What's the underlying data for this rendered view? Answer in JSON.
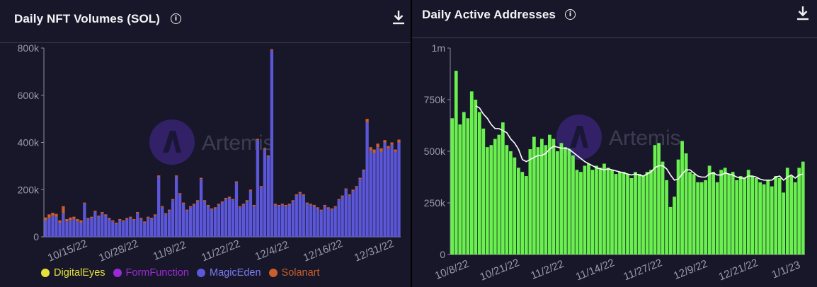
{
  "left": {
    "title": "Daily NFT Volumes (SOL)",
    "watermark": "Artemis",
    "legend": [
      {
        "label": "DigitalEyes",
        "color": "#e6e23a"
      },
      {
        "label": "FormFunction",
        "color": "#9b2ad6"
      },
      {
        "label": "MagicEden",
        "color": "#5b57d8"
      },
      {
        "label": "Solanart",
        "color": "#c95f2a"
      }
    ]
  },
  "right": {
    "title": "Daily Active Addresses",
    "watermark": "Artemis"
  },
  "chart_data": [
    {
      "type": "bar",
      "stacked": true,
      "title": "Daily NFT Volumes (SOL)",
      "x_tick_labels": [
        "10/15/22",
        "10/28/22",
        "11/9/22",
        "11/22/22",
        "12/4/22",
        "12/16/22",
        "12/31/22"
      ],
      "y_tick_labels": [
        "0",
        "200k",
        "400k",
        "600k",
        "800k"
      ],
      "ylim": [
        0,
        800000
      ],
      "grid": false,
      "legend_position": "bottom",
      "series": [
        {
          "name": "MagicEden",
          "color": "#5b57d8",
          "values": [
            70000,
            80000,
            90000,
            85000,
            60000,
            100000,
            65000,
            70000,
            75000,
            65000,
            60000,
            140000,
            75000,
            80000,
            105000,
            85000,
            100000,
            90000,
            75000,
            65000,
            55000,
            70000,
            65000,
            75000,
            80000,
            70000,
            100000,
            75000,
            60000,
            80000,
            75000,
            90000,
            255000,
            125000,
            95000,
            110000,
            155000,
            255000,
            180000,
            140000,
            110000,
            125000,
            135000,
            150000,
            245000,
            150000,
            130000,
            115000,
            120000,
            135000,
            145000,
            160000,
            165000,
            155000,
            230000,
            125000,
            135000,
            150000,
            195000,
            130000,
            410000,
            210000,
            370000,
            340000,
            790000,
            135000,
            130000,
            135000,
            130000,
            135000,
            150000,
            175000,
            185000,
            175000,
            140000,
            135000,
            130000,
            120000,
            110000,
            130000,
            120000,
            115000,
            125000,
            155000,
            170000,
            200000,
            175000,
            195000,
            210000,
            245000,
            280000,
            485000,
            365000,
            355000,
            380000,
            360000,
            400000,
            375000,
            390000,
            360000,
            400000
          ]
        },
        {
          "name": "Solanart",
          "color": "#c95f2a",
          "values": [
            12000,
            15000,
            12000,
            12000,
            10000,
            30000,
            10000,
            12000,
            10000,
            10000,
            10000,
            5000,
            5000,
            5000,
            5000,
            5000,
            5000,
            5000,
            5000,
            5000,
            5000,
            5000,
            5000,
            5000,
            5000,
            5000,
            5000,
            5000,
            5000,
            5000,
            5000,
            5000,
            5000,
            5000,
            5000,
            5000,
            5000,
            5000,
            5000,
            5000,
            5000,
            5000,
            5000,
            5000,
            5000,
            5000,
            5000,
            5000,
            5000,
            5000,
            5000,
            5000,
            5000,
            5000,
            5000,
            5000,
            5000,
            5000,
            5000,
            5000,
            5000,
            5000,
            5000,
            5000,
            5000,
            5000,
            5000,
            5000,
            5000,
            5000,
            5000,
            5000,
            5000,
            5000,
            5000,
            5000,
            5000,
            5000,
            5000,
            5000,
            5000,
            5000,
            5000,
            5000,
            5000,
            5000,
            5000,
            5000,
            5000,
            5000,
            5000,
            15000,
            15000,
            15000,
            15000,
            15000,
            10000,
            10000,
            10000,
            10000,
            12000
          ]
        }
      ]
    },
    {
      "type": "bar",
      "title": "Daily Active Addresses",
      "x_tick_labels": [
        "10/8/22",
        "10/21/22",
        "11/2/22",
        "11/14/22",
        "11/27/22",
        "12/9/22",
        "12/21/22",
        "1/1/23"
      ],
      "y_tick_labels": [
        "0",
        "250k",
        "500k",
        "750k",
        "1m"
      ],
      "ylim": [
        0,
        1000000
      ],
      "grid": false,
      "series": [
        {
          "name": "Daily Active Addresses",
          "type": "bar",
          "color": "#6af04f",
          "values": [
            660000,
            890000,
            630000,
            690000,
            660000,
            790000,
            750000,
            690000,
            610000,
            520000,
            530000,
            560000,
            580000,
            640000,
            530000,
            500000,
            470000,
            420000,
            400000,
            380000,
            510000,
            570000,
            520000,
            560000,
            530000,
            580000,
            560000,
            500000,
            540000,
            520000,
            510000,
            480000,
            410000,
            400000,
            430000,
            440000,
            410000,
            430000,
            420000,
            440000,
            420000,
            410000,
            390000,
            400000,
            400000,
            390000,
            370000,
            400000,
            390000,
            380000,
            400000,
            410000,
            530000,
            540000,
            450000,
            360000,
            230000,
            280000,
            460000,
            550000,
            490000,
            400000,
            390000,
            350000,
            350000,
            360000,
            430000,
            400000,
            350000,
            410000,
            420000,
            390000,
            400000,
            360000,
            380000,
            370000,
            410000,
            380000,
            370000,
            350000,
            340000,
            360000,
            330000,
            380000,
            370000,
            300000,
            420000,
            380000,
            350000,
            420000,
            450000
          ]
        },
        {
          "name": "Moving average",
          "type": "line",
          "color": "#ffffff",
          "values": [
            null,
            null,
            null,
            null,
            null,
            null,
            720000,
            710000,
            680000,
            660000,
            630000,
            610000,
            610000,
            600000,
            590000,
            560000,
            540000,
            510000,
            460000,
            450000,
            460000,
            470000,
            480000,
            480000,
            490000,
            510000,
            525000,
            520000,
            515000,
            515000,
            510000,
            495000,
            480000,
            465000,
            450000,
            440000,
            430000,
            420000,
            415000,
            410000,
            415000,
            410000,
            405000,
            400000,
            395000,
            390000,
            385000,
            390000,
            385000,
            380000,
            390000,
            400000,
            420000,
            430000,
            430000,
            415000,
            385000,
            360000,
            365000,
            390000,
            410000,
            410000,
            395000,
            380000,
            375000,
            375000,
            390000,
            395000,
            385000,
            385000,
            395000,
            390000,
            385000,
            375000,
            370000,
            370000,
            380000,
            380000,
            375000,
            365000,
            360000,
            360000,
            360000,
            375000,
            380000,
            360000,
            375000,
            385000,
            370000,
            385000,
            390000
          ]
        }
      ]
    }
  ]
}
